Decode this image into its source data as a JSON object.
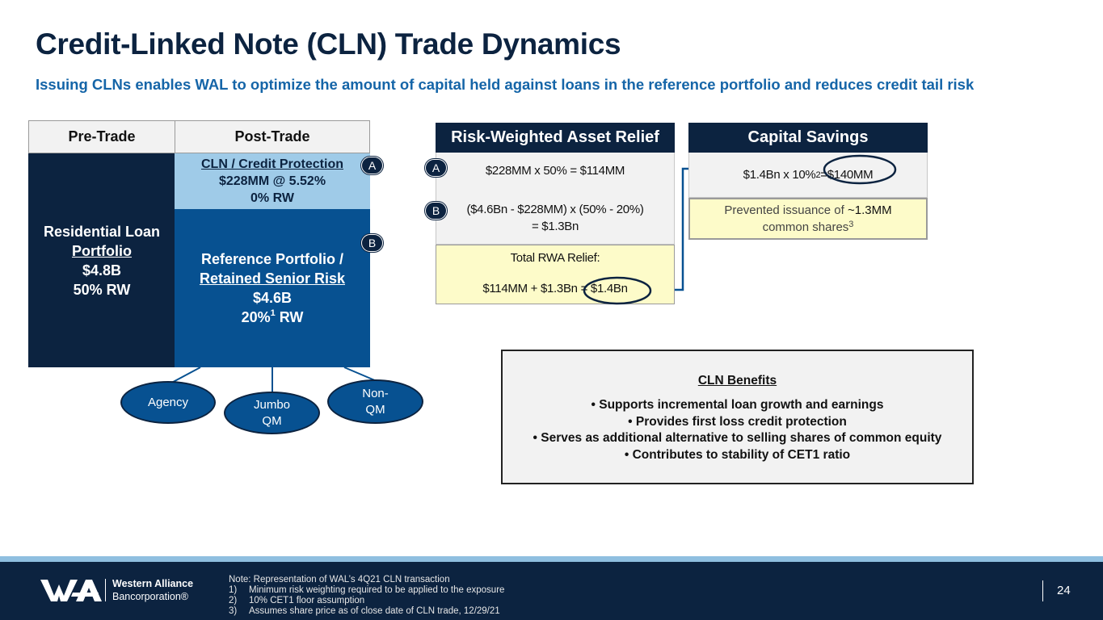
{
  "title": "Credit-Linked Note (CLN) Trade Dynamics",
  "subtitle": "Issuing CLNs enables WAL to optimize the amount of capital held against loans in the reference portfolio and reduces credit tail risk",
  "trade_table": {
    "pre_header": "Pre-Trade",
    "post_header": "Post-Trade",
    "residential": {
      "line1": "Residential Loan",
      "line2": "Portfolio",
      "line3": "$4.8B",
      "line4": "50% RW"
    },
    "cln": {
      "line1": "CLN / Credit Protection",
      "line2": "$228MM @ 5.52%",
      "line3": "0% RW"
    },
    "reference": {
      "line1": "Reference Portfolio /",
      "line2": "Retained Senior Risk",
      "line3": "$4.6B",
      "line4_a": "20%",
      "line4_sup": "1",
      "line4_b": " RW"
    },
    "marker_a": "A",
    "marker_b": "B"
  },
  "segments": [
    {
      "label": "Agency"
    },
    {
      "label_line1": "Jumbo",
      "label_line2": "QM"
    },
    {
      "label_line1": "Non-",
      "label_line2": "QM"
    }
  ],
  "rwa_relief": {
    "header": "Risk-Weighted Asset Relief",
    "marker_a": "A",
    "line_a": "$228MM x 50% = $114MM",
    "marker_b": "B",
    "line_b1": "($4.6Bn - $228MM) x (50% - 20%)",
    "line_b2": "= $1.3Bn",
    "total_label": "Total RWA Relief:",
    "total_calc": "$114MM + $1.3Bn = ",
    "total_value": "$1.4Bn"
  },
  "capital_savings": {
    "header": "Capital Savings",
    "calc_a": "$1.4Bn x 10%",
    "calc_sup": "2",
    "calc_b": " = ",
    "calc_value": "$140MM",
    "note_a": "Prevented issuance of ",
    "note_value": "~1.3MM",
    "note_b": "common shares",
    "note_sup": "3"
  },
  "benefits": {
    "title": "CLN Benefits",
    "items": [
      "Supports incremental loan growth and earnings",
      "Provides first loss credit protection",
      "Serves as additional alternative to selling shares of common equity",
      "Contributes to stability of CET1 ratio"
    ]
  },
  "footer": {
    "logo_name": "Western Alliance",
    "logo_sub": "Bancorporation®",
    "note_title": "Note: Representation of WAL’s 4Q21 CLN transaction",
    "notes": [
      {
        "num": "1)",
        "text": "Minimum risk weighting required to be applied to the exposure"
      },
      {
        "num": "2)",
        "text": "10% CET1 floor assumption"
      },
      {
        "num": "3)",
        "text": "Assumes share price as of close date of CLN trade, 12/29/21"
      }
    ],
    "page_number": "24"
  },
  "colors": {
    "navy": "#0c2340",
    "blue": "#075191",
    "light_blue": "#9fcbe8",
    "subtitle_blue": "#1565a8",
    "highlight_yellow": "#fdfbc9",
    "panel_gray": "#f2f2f2"
  }
}
